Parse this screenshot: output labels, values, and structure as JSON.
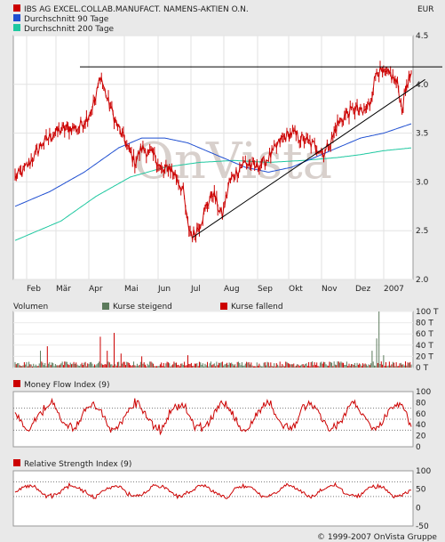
{
  "header": {
    "legend": [
      {
        "label": "IBS AG EXCEL.COLLAB.MANUFACT. NAMENS-AKTIEN O.N.",
        "color": "#cc0000"
      },
      {
        "label": "Durchschnitt 90 Tage",
        "color": "#1f4fd1"
      },
      {
        "label": "Durchschnitt 200 Tage",
        "color": "#1ec8a0"
      }
    ],
    "currency": "EUR"
  },
  "watermark": "OnVista",
  "footer": "© 1999-2007 OnVista Gruppe",
  "chart_data": [
    {
      "type": "line",
      "name": "price-chart",
      "ylim": [
        2.0,
        4.5
      ],
      "yticks": [
        "4.5",
        "4.0",
        "3.5",
        "3.0",
        "2.5",
        "2.0"
      ],
      "x_labels": [
        "Feb",
        "Mär",
        "Apr",
        "Mai",
        "Jun",
        "Jul",
        "Aug",
        "Sep",
        "Okt",
        "Nov",
        "Dez",
        "2007"
      ],
      "price_keypoints": [
        [
          0,
          3.05
        ],
        [
          6,
          3.1
        ],
        [
          16,
          3.25
        ],
        [
          24,
          3.4
        ],
        [
          34,
          3.5
        ],
        [
          44,
          3.55
        ],
        [
          54,
          3.55
        ],
        [
          62,
          3.65
        ],
        [
          70,
          3.85
        ],
        [
          74,
          4.1
        ],
        [
          80,
          3.85
        ],
        [
          88,
          3.6
        ],
        [
          96,
          3.4
        ],
        [
          104,
          3.2
        ],
        [
          110,
          3.35
        ],
        [
          116,
          3.3
        ],
        [
          122,
          3.25
        ],
        [
          128,
          3.1
        ],
        [
          134,
          3.15
        ],
        [
          140,
          3.05
        ],
        [
          146,
          2.9
        ],
        [
          150,
          2.55
        ],
        [
          154,
          2.45
        ],
        [
          160,
          2.55
        ],
        [
          166,
          2.75
        ],
        [
          172,
          2.9
        ],
        [
          176,
          2.75
        ],
        [
          180,
          2.65
        ],
        [
          186,
          3.0
        ],
        [
          192,
          3.1
        ],
        [
          200,
          3.2
        ],
        [
          208,
          3.15
        ],
        [
          216,
          3.2
        ],
        [
          224,
          3.3
        ],
        [
          232,
          3.45
        ],
        [
          240,
          3.5
        ],
        [
          248,
          3.45
        ],
        [
          256,
          3.4
        ],
        [
          262,
          3.35
        ],
        [
          268,
          3.3
        ],
        [
          274,
          3.4
        ],
        [
          280,
          3.6
        ],
        [
          288,
          3.7
        ],
        [
          296,
          3.75
        ],
        [
          302,
          3.7
        ],
        [
          308,
          3.8
        ],
        [
          314,
          4.15
        ],
        [
          320,
          4.1
        ],
        [
          326,
          4.1
        ],
        [
          332,
          4.0
        ],
        [
          336,
          3.75
        ],
        [
          340,
          4.0
        ],
        [
          344,
          4.1
        ]
      ],
      "price_n": 345,
      "resistance_line": {
        "x": [
          0,
          356
        ],
        "y": [
          4.18,
          4.18
        ]
      },
      "support_line": {
        "x": [
          154,
          356
        ],
        "y": [
          2.43,
          4.05
        ]
      },
      "ma90_keypoints": [
        [
          0,
          2.75
        ],
        [
          30,
          2.9
        ],
        [
          60,
          3.1
        ],
        [
          90,
          3.35
        ],
        [
          110,
          3.45
        ],
        [
          130,
          3.45
        ],
        [
          150,
          3.4
        ],
        [
          180,
          3.25
        ],
        [
          200,
          3.15
        ],
        [
          220,
          3.1
        ],
        [
          240,
          3.15
        ],
        [
          260,
          3.25
        ],
        [
          280,
          3.35
        ],
        [
          300,
          3.45
        ],
        [
          320,
          3.5
        ],
        [
          345,
          3.6
        ]
      ],
      "ma200_keypoints": [
        [
          0,
          2.4
        ],
        [
          40,
          2.6
        ],
        [
          70,
          2.85
        ],
        [
          100,
          3.05
        ],
        [
          130,
          3.15
        ],
        [
          160,
          3.2
        ],
        [
          190,
          3.22
        ],
        [
          220,
          3.2
        ],
        [
          250,
          3.22
        ],
        [
          280,
          3.25
        ],
        [
          300,
          3.28
        ],
        [
          320,
          3.32
        ],
        [
          345,
          3.35
        ]
      ]
    },
    {
      "type": "bar",
      "name": "volume-chart",
      "title": "Volumen",
      "legend": [
        {
          "label": "Kurse steigend",
          "color": "#5b7a5b"
        },
        {
          "label": "Kurse fallend",
          "color": "#cc0000"
        }
      ],
      "yticks": [
        "100 T",
        "80 T",
        "60 T",
        "40 T",
        "20 T",
        "0 T"
      ],
      "ylim": [
        0,
        100
      ],
      "n": 345,
      "spikes": [
        {
          "i": 22,
          "v": 30
        },
        {
          "i": 28,
          "v": 38
        },
        {
          "i": 74,
          "v": 55
        },
        {
          "i": 80,
          "v": 30
        },
        {
          "i": 86,
          "v": 62
        },
        {
          "i": 92,
          "v": 25
        },
        {
          "i": 110,
          "v": 20
        },
        {
          "i": 150,
          "v": 22
        },
        {
          "i": 310,
          "v": 30
        },
        {
          "i": 314,
          "v": 52
        },
        {
          "i": 316,
          "v": 100
        },
        {
          "i": 320,
          "v": 22
        }
      ]
    },
    {
      "type": "line",
      "name": "mfi-chart",
      "title": "Money Flow Index (9)",
      "yticks": [
        "100",
        "80",
        "60",
        "40",
        "20",
        "0"
      ],
      "ylim": [
        0,
        100
      ],
      "n": 345
    },
    {
      "type": "line",
      "name": "rsi-chart",
      "title": "Relative Strength Index (9)",
      "yticks": [
        "100",
        "50",
        "0",
        "-50"
      ],
      "ylim": [
        -50,
        100
      ],
      "n": 345
    }
  ]
}
